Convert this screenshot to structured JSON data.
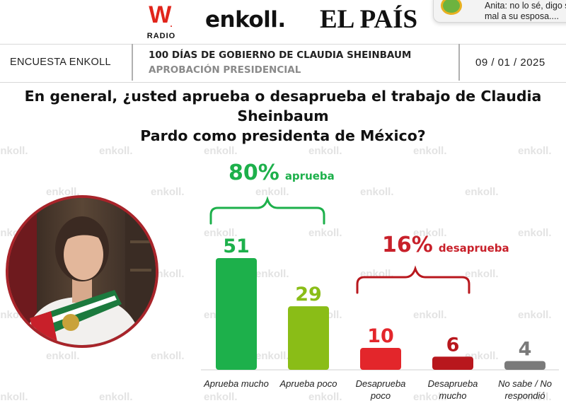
{
  "header": {
    "logo_w": "W",
    "logo_w_mark": ".",
    "logo_radio": "RADIO",
    "logo_enkoll": "enkoll.",
    "logo_elpais": "EL PAÍS",
    "left_label": "ENCUESTA ENKOLL",
    "title": "100 DÍAS DE GOBIERNO DE CLAUDIA SHEINBAUM",
    "subtitle": "APROBACIÓN PRESIDENCIAL",
    "date": "09 / 01 / 2025"
  },
  "notification": {
    "line1": "Anita: no lo sé, digo s",
    "line2": "mal a su esposa...."
  },
  "question_line1": "En general, ¿usted aprueba o desaprueba el trabajo de Claudia Sheinbaum",
  "question_line2": "Pardo como presidenta de México?",
  "watermark": "enkoll.",
  "groups": {
    "approve_pct": "80%",
    "approve_word": "aprueba",
    "disapprove_pct": "16%",
    "disapprove_word": "desaprueba"
  },
  "chart_data": {
    "type": "bar",
    "categories": [
      "Aprueba mucho",
      "Aprueba poco",
      "Desaprueba poco",
      "Desaprueba mucho",
      "No sabe / No respondió"
    ],
    "category_lines": [
      [
        "Aprueba mucho"
      ],
      [
        "Aprueba poco"
      ],
      [
        "Desaprueba",
        "poco"
      ],
      [
        "Desaprueba",
        "mucho"
      ],
      [
        "No sabe / No",
        "respondió"
      ]
    ],
    "values": [
      51,
      29,
      10,
      6,
      4
    ],
    "value_labels": [
      "51",
      "29",
      "10",
      "6",
      "4"
    ],
    "colors": [
      "#1db04b",
      "#8abd17",
      "#e3262b",
      "#b8171d",
      "#7a7a7a"
    ],
    "ylim": [
      0,
      51
    ],
    "title": "",
    "xlabel": "",
    "ylabel": ""
  }
}
